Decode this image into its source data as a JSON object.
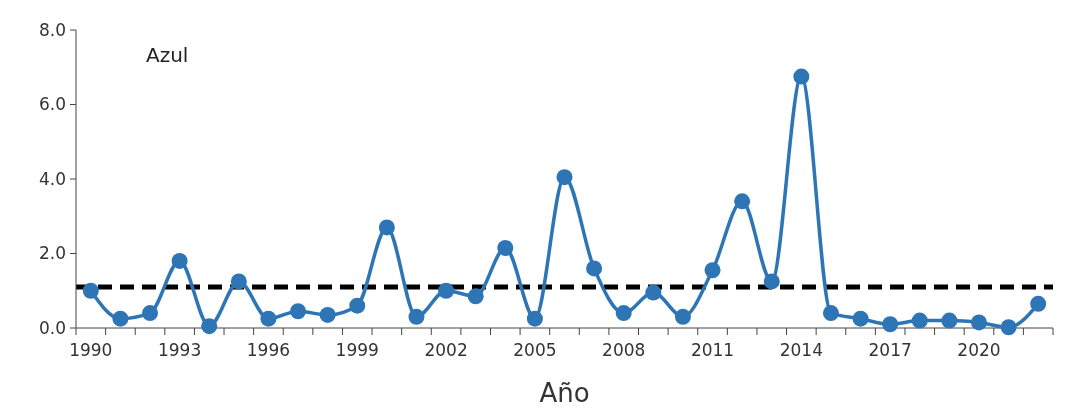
{
  "chart_data": {
    "type": "line",
    "xlabel": "Año",
    "annotations": [
      "Azul"
    ],
    "categories": [
      "1990",
      null,
      null,
      "1993",
      null,
      null,
      "1996",
      null,
      null,
      "1999",
      null,
      null,
      "2002",
      null,
      null,
      "2005",
      null,
      null,
      "2008",
      null,
      null,
      "2011",
      null,
      null,
      "2014",
      null,
      null,
      "2017",
      null,
      null,
      "2020",
      null,
      null
    ],
    "series": [
      {
        "color": "#2e75b6",
        "values": [
          1.0,
          0.25,
          0.4,
          1.8,
          0.05,
          1.25,
          0.25,
          0.45,
          0.35,
          0.6,
          2.7,
          0.3,
          1.0,
          0.85,
          2.15,
          0.25,
          4.05,
          1.6,
          0.4,
          0.95,
          0.3,
          1.55,
          3.4,
          1.25,
          6.75,
          0.4,
          0.25,
          0.1,
          0.2,
          0.2,
          0.15,
          0.02,
          0.65
        ]
      }
    ],
    "ylim": [
      0,
      8
    ],
    "yticks": [
      {
        "value": 0,
        "label": "0.0"
      },
      {
        "value": 2,
        "label": "2.0"
      },
      {
        "value": 4,
        "label": "4.0"
      },
      {
        "value": 6,
        "label": "6.0"
      },
      {
        "value": 8,
        "label": "8.0"
      }
    ],
    "ref_lines": [
      {
        "axis": "y",
        "value": 1.1,
        "color": "#000000",
        "line_style": "dashed"
      }
    ],
    "marker": "circle",
    "grid": false
  }
}
